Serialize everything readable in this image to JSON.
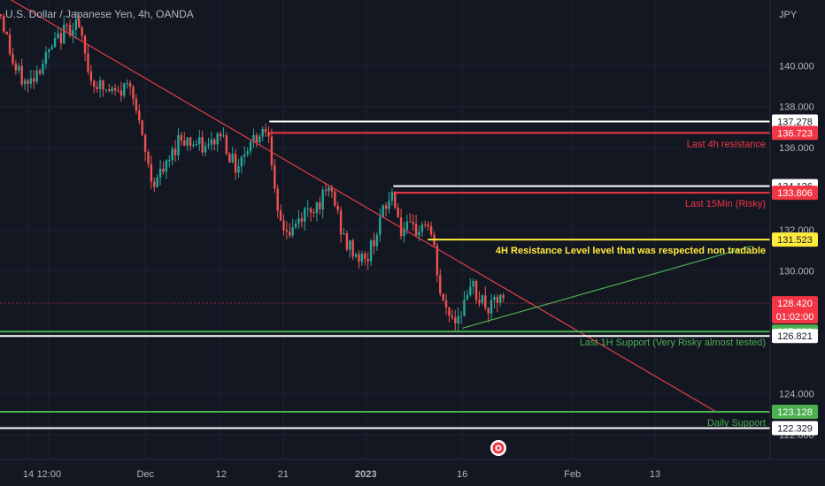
{
  "header": {
    "symbol_title": "U.S. Dollar / Japanese Yen, 4h, OANDA",
    "currency": "JPY"
  },
  "colors": {
    "background": "#131722",
    "grid": "#1e2230",
    "candle_up": "#26a69a",
    "candle_down": "#ef5350",
    "trendline_red": "#e03e4a",
    "trendline_green": "#4caf50",
    "level_white": "#ffffff",
    "level_red": "#f23645",
    "level_yellow": "#ffeb3b",
    "level_green": "#4caf50",
    "axis_text": "#b2b5be"
  },
  "chart_data": {
    "type": "candlestick",
    "title": "U.S. Dollar / Japanese Yen, 4h, OANDA",
    "y_unit": "JPY",
    "ylim": [
      120.8,
      143.2
    ],
    "y_ticks": [
      "140.000",
      "138.000",
      "136.000",
      "132.000",
      "130.000",
      "124.000",
      "122.000"
    ],
    "x_ticks": [
      "14",
      "12:00",
      "Dec",
      "12",
      "21",
      "2023",
      "16",
      "Feb",
      "13"
    ],
    "grid": true,
    "current_price": {
      "price": 128.42,
      "label": "128.420",
      "countdown": "01:02:00",
      "color": "#f23645"
    },
    "horizontal_levels": [
      {
        "price": 137.278,
        "label": "137.278",
        "color": "#ffffff",
        "annotation": ""
      },
      {
        "price": 136.723,
        "label": "136.723",
        "color": "#f23645",
        "annotation": "Last 4h resistance"
      },
      {
        "price": 134.126,
        "label": "134.126",
        "color": "#ffffff",
        "annotation": ""
      },
      {
        "price": 133.806,
        "label": "133.806",
        "color": "#f23645",
        "annotation": "Last 15Min (Risky)"
      },
      {
        "price": 131.523,
        "label": "131.523",
        "color": "#ffeb3b",
        "annotation": "4H Resistance Level level that was respected non tradable"
      },
      {
        "price": 127.036,
        "label": "127.036",
        "color": "#4caf50",
        "annotation": "Last 1H Support (Very Risky almost tested)"
      },
      {
        "price": 126.821,
        "label": "126.821",
        "color": "#ffffff",
        "annotation": ""
      },
      {
        "price": 123.128,
        "label": "123.128",
        "color": "#4caf50",
        "annotation": "Daily Support"
      },
      {
        "price": 122.329,
        "label": "122.329",
        "color": "#ffffff",
        "annotation": ""
      }
    ],
    "trendlines": [
      {
        "name": "descending resistance",
        "color": "#e03e4a",
        "from": {
          "x": "Nov 10",
          "y": 143.5
        },
        "to": {
          "x": "Feb 22",
          "y": 123.1
        }
      },
      {
        "name": "ascending support",
        "color": "#4caf50",
        "from": {
          "x": "Jan 16",
          "y": 127.2
        },
        "to": {
          "x": "Feb 27",
          "y": 131.2
        }
      }
    ],
    "price_path": [
      {
        "x": "Nov 10",
        "y": 142.5
      },
      {
        "x": "Nov 12",
        "y": 139.8
      },
      {
        "x": "Nov 14",
        "y": 139.0
      },
      {
        "x": "Nov 15",
        "y": 139.7
      },
      {
        "x": "Nov 17",
        "y": 140.6
      },
      {
        "x": "Nov 19",
        "y": 141.6
      },
      {
        "x": "Nov 21",
        "y": 142.2
      },
      {
        "x": "Nov 23",
        "y": 139.4
      },
      {
        "x": "Nov 25",
        "y": 138.8
      },
      {
        "x": "Nov 27",
        "y": 138.6
      },
      {
        "x": "Nov 29",
        "y": 139.3
      },
      {
        "x": "Nov 30",
        "y": 137.1
      },
      {
        "x": "Dec 2",
        "y": 134.3
      },
      {
        "x": "Dec 4",
        "y": 135.0
      },
      {
        "x": "Dec 6",
        "y": 136.6
      },
      {
        "x": "Dec 8",
        "y": 136.2
      },
      {
        "x": "Dec 10",
        "y": 135.9
      },
      {
        "x": "Dec 12",
        "y": 136.8
      },
      {
        "x": "Dec 14",
        "y": 135.0
      },
      {
        "x": "Dec 16",
        "y": 136.2
      },
      {
        "x": "Dec 18",
        "y": 136.9
      },
      {
        "x": "Dec 19",
        "y": 137.0
      },
      {
        "x": "Dec 20",
        "y": 132.6
      },
      {
        "x": "Dec 22",
        "y": 131.8
      },
      {
        "x": "Dec 24",
        "y": 132.8
      },
      {
        "x": "Dec 26",
        "y": 133.3
      },
      {
        "x": "Dec 28",
        "y": 133.9
      },
      {
        "x": "Dec 30",
        "y": 131.3
      },
      {
        "x": "Jan 2",
        "y": 130.4
      },
      {
        "x": "Jan 4",
        "y": 132.4
      },
      {
        "x": "Jan 6",
        "y": 133.9
      },
      {
        "x": "Jan 7",
        "y": 132.0
      },
      {
        "x": "Jan 9",
        "y": 131.9
      },
      {
        "x": "Jan 11",
        "y": 132.4
      },
      {
        "x": "Jan 12",
        "y": 130.8
      },
      {
        "x": "Jan 13",
        "y": 128.4
      },
      {
        "x": "Jan 15",
        "y": 127.6
      },
      {
        "x": "Jan 16",
        "y": 128.3
      },
      {
        "x": "Jan 17",
        "y": 128.5
      },
      {
        "x": "Jan 18",
        "y": 130.6
      },
      {
        "x": "Jan 18",
        "y": 128.9
      },
      {
        "x": "Jan 20",
        "y": 128.0
      },
      {
        "x": "Jan 21",
        "y": 128.6
      },
      {
        "x": "Jan 22",
        "y": 128.4
      }
    ]
  }
}
